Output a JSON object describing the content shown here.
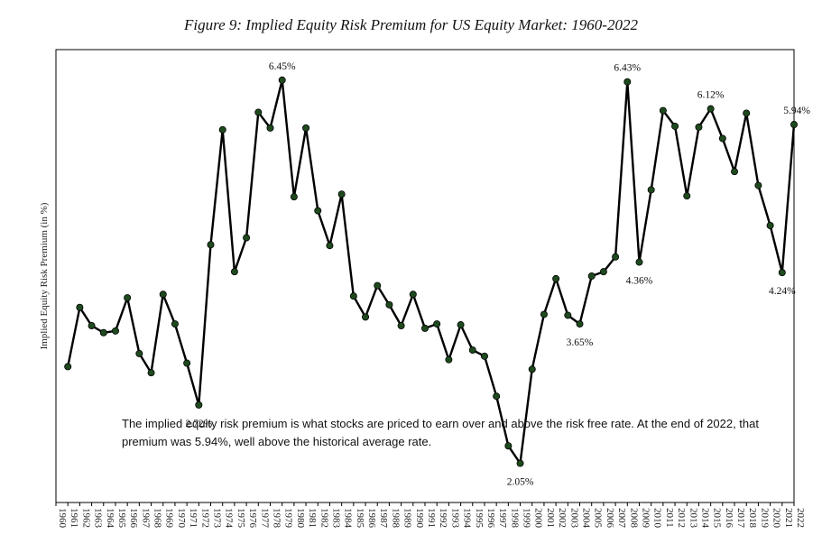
{
  "chart_data": {
    "type": "line",
    "title": "Figure 9: Implied Equity Risk Premium for US Equity Market: 1960-2022",
    "xlabel": "",
    "ylabel": "Implied Equity Risk Premium (in %)",
    "ylim": [
      1.6,
      6.8
    ],
    "grid": false,
    "legend": "none",
    "line_color": "#000000",
    "marker_color": "#1e4a1e",
    "x": [
      "1960",
      "1961",
      "1962",
      "1963",
      "1964",
      "1965",
      "1966",
      "1967",
      "1968",
      "1969",
      "1970",
      "1971",
      "1972",
      "1973",
      "1974",
      "1975",
      "1976",
      "1977",
      "1978",
      "1979",
      "1980",
      "1981",
      "1982",
      "1983",
      "1984",
      "1985",
      "1986",
      "1987",
      "1988",
      "1989",
      "1990",
      "1991",
      "1992",
      "1993",
      "1994",
      "1995",
      "1996",
      "1997",
      "1998",
      "1999",
      "2000",
      "2001",
      "2002",
      "2003",
      "2004",
      "2005",
      "2006",
      "2007",
      "2008",
      "2009",
      "2010",
      "2011",
      "2012",
      "2013",
      "2014",
      "2015",
      "2016",
      "2017",
      "2018",
      "2019",
      "2020",
      "2021",
      "2022"
    ],
    "values": [
      null,
      3.16,
      3.84,
      3.63,
      3.55,
      3.57,
      3.95,
      3.31,
      3.09,
      3.99,
      3.65,
      3.2,
      2.72,
      4.56,
      5.88,
      4.25,
      4.64,
      6.08,
      5.9,
      6.45,
      5.11,
      5.9,
      4.95,
      4.55,
      5.14,
      3.97,
      3.73,
      4.09,
      3.87,
      3.63,
      3.99,
      3.6,
      3.65,
      3.24,
      3.64,
      3.35,
      3.28,
      2.82,
      2.25,
      2.05,
      3.13,
      3.76,
      4.17,
      3.75,
      3.65,
      4.2,
      4.25,
      4.42,
      6.43,
      4.36,
      5.19,
      6.1,
      5.92,
      5.12,
      5.91,
      6.12,
      5.78,
      5.4,
      6.07,
      5.24,
      4.78,
      4.24,
      5.94
    ],
    "annotations": [
      {
        "x": "1972",
        "label": "2.72%"
      },
      {
        "x": "1979",
        "label": "6.45%"
      },
      {
        "x": "1999",
        "label": "2.05%"
      },
      {
        "x": "2004",
        "label": "3.65%"
      },
      {
        "x": "2008",
        "label": "6.43%"
      },
      {
        "x": "2009",
        "label": "4.36%"
      },
      {
        "x": "2015",
        "label": "6.12%"
      },
      {
        "x": "2021",
        "label": "4.24%"
      },
      {
        "x": "2022",
        "label": "5.94%"
      }
    ]
  },
  "note": "The implied equity risk premium is what stocks are priced to earn over and above the risk free rate. At the end of 2022, that premium was 5.94%, well above the historical average rate."
}
